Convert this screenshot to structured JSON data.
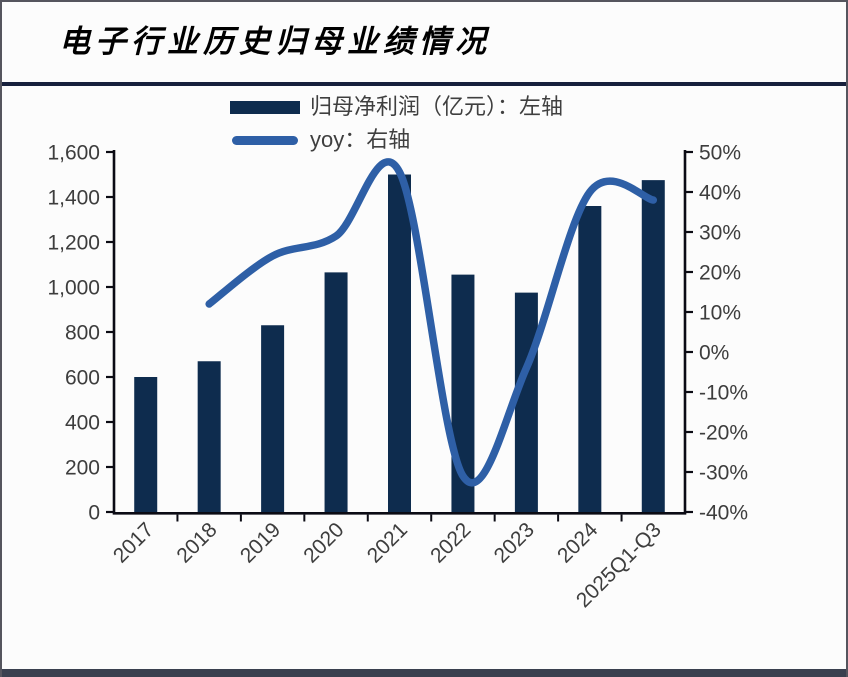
{
  "title": {
    "text": "电子行业历史归母业绩情况"
  },
  "legend": {
    "items": [
      {
        "label": "归母净利润（亿元）：左轴",
        "swatch": "bar-swatch",
        "color": "#0e2c4e"
      },
      {
        "label": "yoy：右轴",
        "swatch": "line-swatch",
        "color": "#2e5fa6"
      }
    ]
  },
  "chart_data": {
    "type": "bar",
    "subtype": "bar+line dual axis",
    "categories": [
      "2017",
      "2018",
      "2019",
      "2020",
      "2021",
      "2022",
      "2023",
      "2024",
      "2025Q1-Q3"
    ],
    "series": [
      {
        "name": "归母净利润（亿元）：左轴",
        "type": "bar",
        "axis": "left",
        "color": "#0e2c4e",
        "values": [
          600,
          670,
          830,
          1065,
          1500,
          1055,
          975,
          1360,
          1475
        ]
      },
      {
        "name": "yoy：右轴",
        "type": "line",
        "axis": "right",
        "color": "#2e5fa6",
        "values": [
          null,
          12,
          24,
          29,
          45,
          -31,
          -4,
          40,
          38
        ]
      }
    ],
    "left_axis": {
      "min": 0,
      "max": 1600,
      "step": 200,
      "tick_labels": [
        "0",
        "200",
        "400",
        "600",
        "800",
        "1,000",
        "1,200",
        "1,400",
        "1,600"
      ]
    },
    "right_axis": {
      "min": -40,
      "max": 50,
      "step": 10,
      "tick_labels": [
        "-40%",
        "-30%",
        "-20%",
        "-10%",
        "0%",
        "10%",
        "20%",
        "30%",
        "40%",
        "50%"
      ]
    },
    "grid": false,
    "legend_position": "top-center",
    "x_label_rotation_deg": 45,
    "axis_color": "#0b0b14",
    "tick_label_color": "#3d3d3d"
  }
}
